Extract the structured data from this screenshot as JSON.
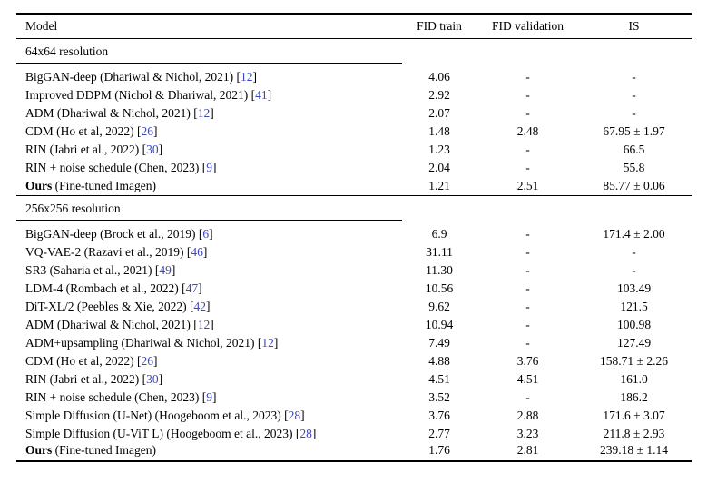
{
  "citation_color": "#3a46c2",
  "columns": [
    "Model",
    "FID train",
    "FID validation",
    "IS"
  ],
  "chart_data": {
    "type": "table",
    "title": "",
    "columns": [
      "Model",
      "FID train",
      "FID validation",
      "IS"
    ],
    "sections": [
      {
        "label": "64x64 resolution",
        "rows": [
          {
            "model": "BigGAN-deep (Dhariwal & Nichol, 2021)",
            "cite": "12",
            "values": [
              "4.06",
              "-",
              "-"
            ]
          },
          {
            "model": "Improved DDPM (Nichol & Dhariwal, 2021)",
            "cite": "41",
            "values": [
              "2.92",
              "-",
              "-"
            ]
          },
          {
            "model": "ADM (Dhariwal & Nichol, 2021)",
            "cite": "12",
            "values": [
              "2.07",
              "-",
              "-"
            ]
          },
          {
            "model": "CDM (Ho et al, 2022)",
            "cite": "26",
            "values": [
              "1.48",
              "2.48",
              "67.95 ± 1.97"
            ]
          },
          {
            "model": "RIN (Jabri et al., 2022)",
            "cite": "30",
            "values": [
              "1.23",
              "-",
              "66.5"
            ]
          },
          {
            "model": "RIN + noise schedule (Chen, 2023)",
            "cite": "9",
            "values": [
              "2.04",
              "-",
              "55.8"
            ]
          },
          {
            "model_bold": "Ours",
            "model": " (Fine-tuned Imagen)",
            "cite": null,
            "values": [
              "1.21",
              "2.51",
              "85.77 ± 0.06"
            ]
          }
        ]
      },
      {
        "label": "256x256 resolution",
        "rows": [
          {
            "model": "BigGAN-deep (Brock et al., 2019)",
            "cite": "6",
            "values": [
              "6.9",
              "-",
              "171.4 ± 2.00"
            ]
          },
          {
            "model": "VQ-VAE-2 (Razavi et al., 2019)",
            "cite": "46",
            "values": [
              "31.11",
              "-",
              "-"
            ]
          },
          {
            "model": "SR3 (Saharia et al., 2021)",
            "cite": "49",
            "values": [
              "11.30",
              "-",
              "-"
            ]
          },
          {
            "model": "LDM-4 (Rombach et al., 2022)",
            "cite": "47",
            "values": [
              "10.56",
              "-",
              "103.49"
            ]
          },
          {
            "model": "DiT-XL/2 (Peebles & Xie, 2022)",
            "cite": "42",
            "values": [
              "9.62",
              "-",
              "121.5"
            ]
          },
          {
            "model": "ADM (Dhariwal & Nichol, 2021)",
            "cite": "12",
            "values": [
              "10.94",
              "-",
              "100.98"
            ]
          },
          {
            "model": "ADM+upsampling (Dhariwal & Nichol, 2021)",
            "cite": "12",
            "values": [
              "7.49",
              "-",
              "127.49"
            ]
          },
          {
            "model": "CDM (Ho et al, 2022)",
            "cite": "26",
            "values": [
              "4.88",
              "3.76",
              "158.71 ± 2.26"
            ]
          },
          {
            "model": "RIN (Jabri et al., 2022)",
            "cite": "30",
            "values": [
              "4.51",
              "4.51",
              "161.0"
            ]
          },
          {
            "model": "RIN + noise schedule (Chen, 2023)",
            "cite": "9",
            "values": [
              "3.52",
              "-",
              "186.2"
            ]
          },
          {
            "model": "Simple Diffusion (U-Net) (Hoogeboom et al., 2023)",
            "cite": "28",
            "values": [
              "3.76",
              "2.88",
              "171.6 ± 3.07"
            ]
          },
          {
            "model": "Simple Diffusion (U-ViT L) (Hoogeboom et al., 2023)",
            "cite": "28",
            "values": [
              "2.77",
              "3.23",
              "211.8 ± 2.93"
            ]
          },
          {
            "model_bold": "Ours",
            "model": " (Fine-tuned Imagen)",
            "cite": null,
            "values": [
              "1.76",
              "2.81",
              "239.18 ± 1.14"
            ]
          }
        ]
      }
    ]
  }
}
